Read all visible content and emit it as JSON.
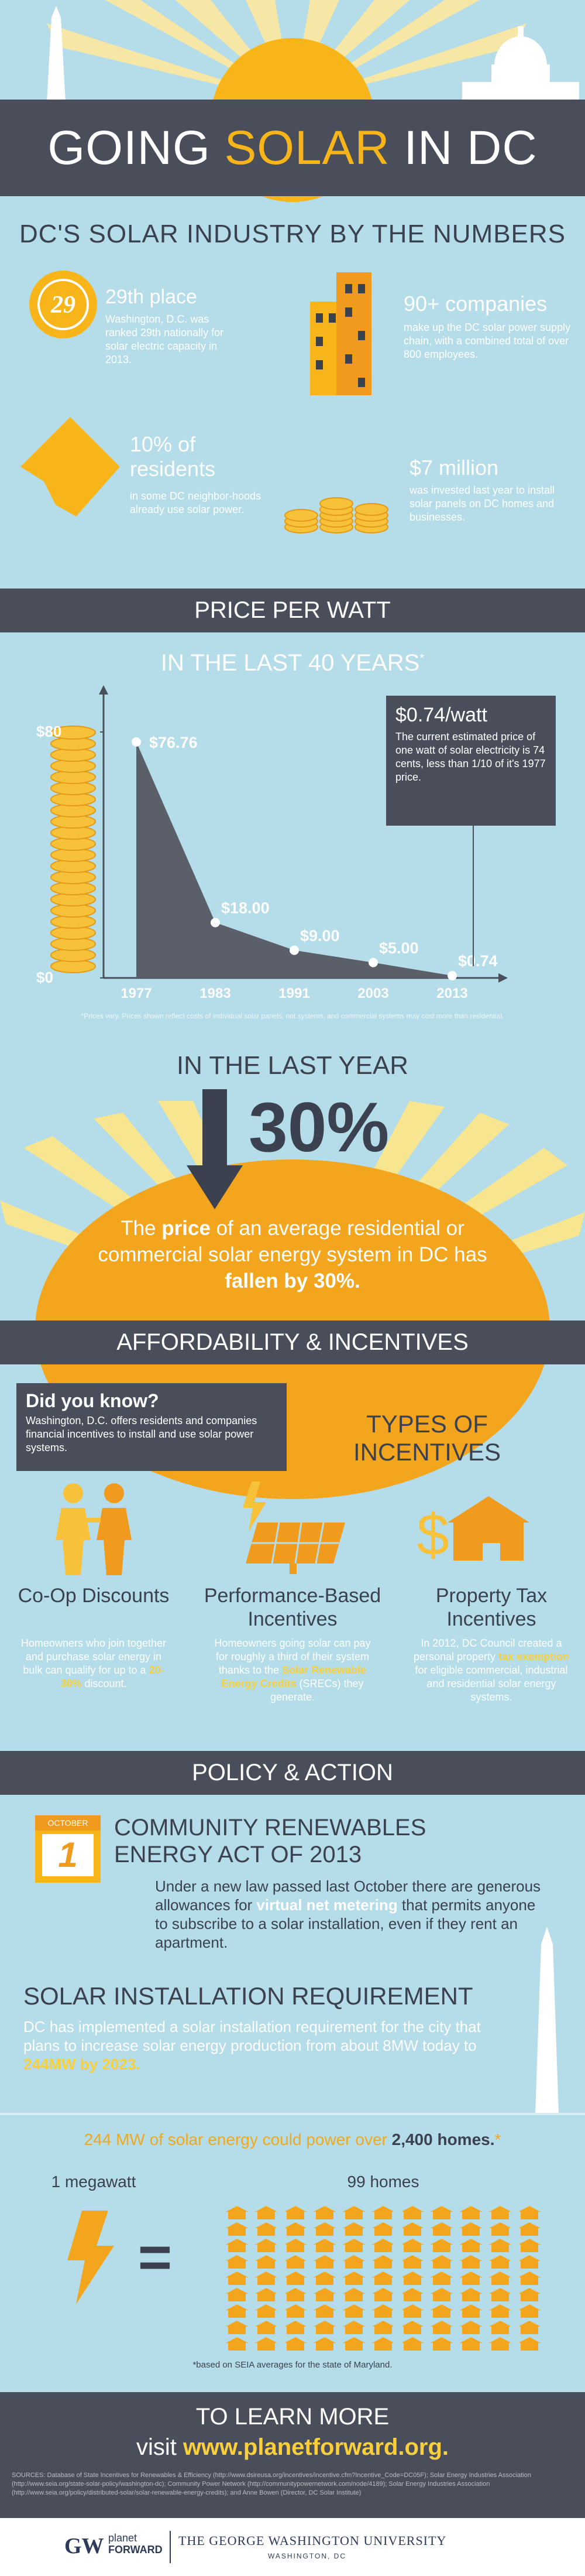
{
  "header": {
    "title_before": "GOING",
    "title_highlight": "SOLAR",
    "title_after": "IN DC"
  },
  "numbers": {
    "title": "DC'S SOLAR INDUSTRY BY THE NUMBERS",
    "items": [
      {
        "badge": "29",
        "heading": "29th place",
        "text": "Washington, D.C. was ranked 29th nationally for solar electric capacity in 2013."
      },
      {
        "heading": "90+ companies",
        "text": "make up the DC solar power supply chain, with a combined total of over 800 employees."
      },
      {
        "heading": "10% of residents",
        "text": "in some DC neighbor-hoods already use solar power."
      },
      {
        "heading": "$7 million",
        "text": "was invested last year to install solar panels on DC homes and businesses."
      }
    ]
  },
  "price": {
    "bar": "PRICE PER WATT",
    "subtitle": "IN THE LAST 40 YEARS",
    "subtitle_mark": "*",
    "chart_data": {
      "type": "area",
      "categories": [
        "1977",
        "1983",
        "1991",
        "2003",
        "2013"
      ],
      "values": [
        76.76,
        18.0,
        9.0,
        5.0,
        0.74
      ],
      "value_labels": [
        "$76.76",
        "$18.00",
        "$9.00",
        "$5.00",
        "$0.74"
      ],
      "color": "#5b5f69",
      "ylim": [
        0,
        80
      ],
      "yticks": [
        {
          "value": 0,
          "label": "$0"
        },
        {
          "value": 80,
          "label": "$80"
        }
      ]
    },
    "callout": {
      "heading": "$0.74/watt",
      "text": "The current estimated price of one watt of solar electricity is 74 cents, less than 1/10 of it's 1977 price."
    },
    "footnote": "*Prices vary. Prices shown reflect costs of individual solar panels, not systems, and commercial systems may cost more than residential."
  },
  "last_year": {
    "title": "IN THE LAST YEAR",
    "big": "30%",
    "text": [
      {
        "text": "The "
      },
      {
        "text": "price",
        "highlight": true
      },
      {
        "text": " of an average residential or commercial solar energy system in DC has "
      },
      {
        "text": "fallen by 30%.",
        "highlight": true
      }
    ]
  },
  "incentives": {
    "bar": "AFFORDABILITY & INCENTIVES",
    "did_you_know": {
      "heading": "Did you know?",
      "text": "Washington, D.C. offers residents and companies financial incentives to install and use solar power systems."
    },
    "title": "TYPES OF INCENTIVES",
    "items": [
      {
        "heading": "Co-Op Discounts",
        "text": [
          {
            "text": "Homeowners who join together and purchase solar energy in bulk can qualify for up to a "
          },
          {
            "text": "20-30%",
            "highlight": true
          },
          {
            "text": " discount."
          }
        ]
      },
      {
        "heading": "Performance-Based Incentives",
        "text": [
          {
            "text": "Homeowners going solar can pay for roughly a third of their system thanks to the "
          },
          {
            "text": "Solar Renewable Energy Credits",
            "highlight": true
          },
          {
            "text": " (SRECs) they generate."
          }
        ]
      },
      {
        "heading": "Property Tax Incentives",
        "text": [
          {
            "text": "In 2012, DC Council created a personal property "
          },
          {
            "text": "tax exemption",
            "highlight": true
          },
          {
            "text": " for eligible commercial, industrial and residential solar energy systems."
          }
        ]
      }
    ]
  },
  "policy": {
    "bar": "POLICY & ACTION",
    "calendar": {
      "month": "OCTOBER",
      "day": "1"
    },
    "act": {
      "heading": "COMMUNITY RENEWABLES ENERGY ACT OF 2013",
      "text": [
        {
          "text": "Under a new law passed last October there are generous allowances for "
        },
        {
          "text": "virtual net metering",
          "highlight": true
        },
        {
          "text": " that permits anyone to subscribe to a solar installation, even if they rent an apartment."
        }
      ]
    },
    "requirement": {
      "heading": "SOLAR INSTALLATION REQUIREMENT",
      "text": [
        {
          "text": "DC has implemented a solar installation requirement for the city that plans to increase solar energy production from about 8MW today to "
        },
        {
          "text": "244MW by 2023.",
          "highlight": true
        }
      ]
    }
  },
  "power": {
    "headline": [
      {
        "text": "244 MW of solar energy could power over "
      },
      {
        "text": "2,400 homes.",
        "highlight": true
      },
      {
        "text": "*"
      }
    ],
    "left_label": "1 megawatt",
    "equals": "=",
    "right_label": "99 homes",
    "footnote": "*based on SEIA averages for the state of Maryland."
  },
  "footer": {
    "title": "TO LEARN MORE",
    "visit": [
      {
        "text": "visit "
      },
      {
        "text": "www.planetforward.org.",
        "highlight": true
      }
    ],
    "sources": "SOURCES: Database of State Incentives for Renewables & Efficiency (http://www.dsireusa.org/incentives/incentive.cfm?Incentive_Code=DC05F); Solar Energy Industries Association (http://www.seia.org/state-solar-policy/washington-dc); Community Power Network (http://communitypowernetwork.com/node/4189); Solar Energy Industries Association (http://www.seia.org/policy/distributed-solar/solar-renewable-energy-credits); and Anne Bowen (Director, DC Solar Institute)",
    "logo_gw": "GW",
    "logo_planet": "planet",
    "logo_forward": "FORWARD",
    "university": "THE GEORGE WASHINGTON UNIVERSITY",
    "university_place": "WASHINGTON, DC"
  }
}
